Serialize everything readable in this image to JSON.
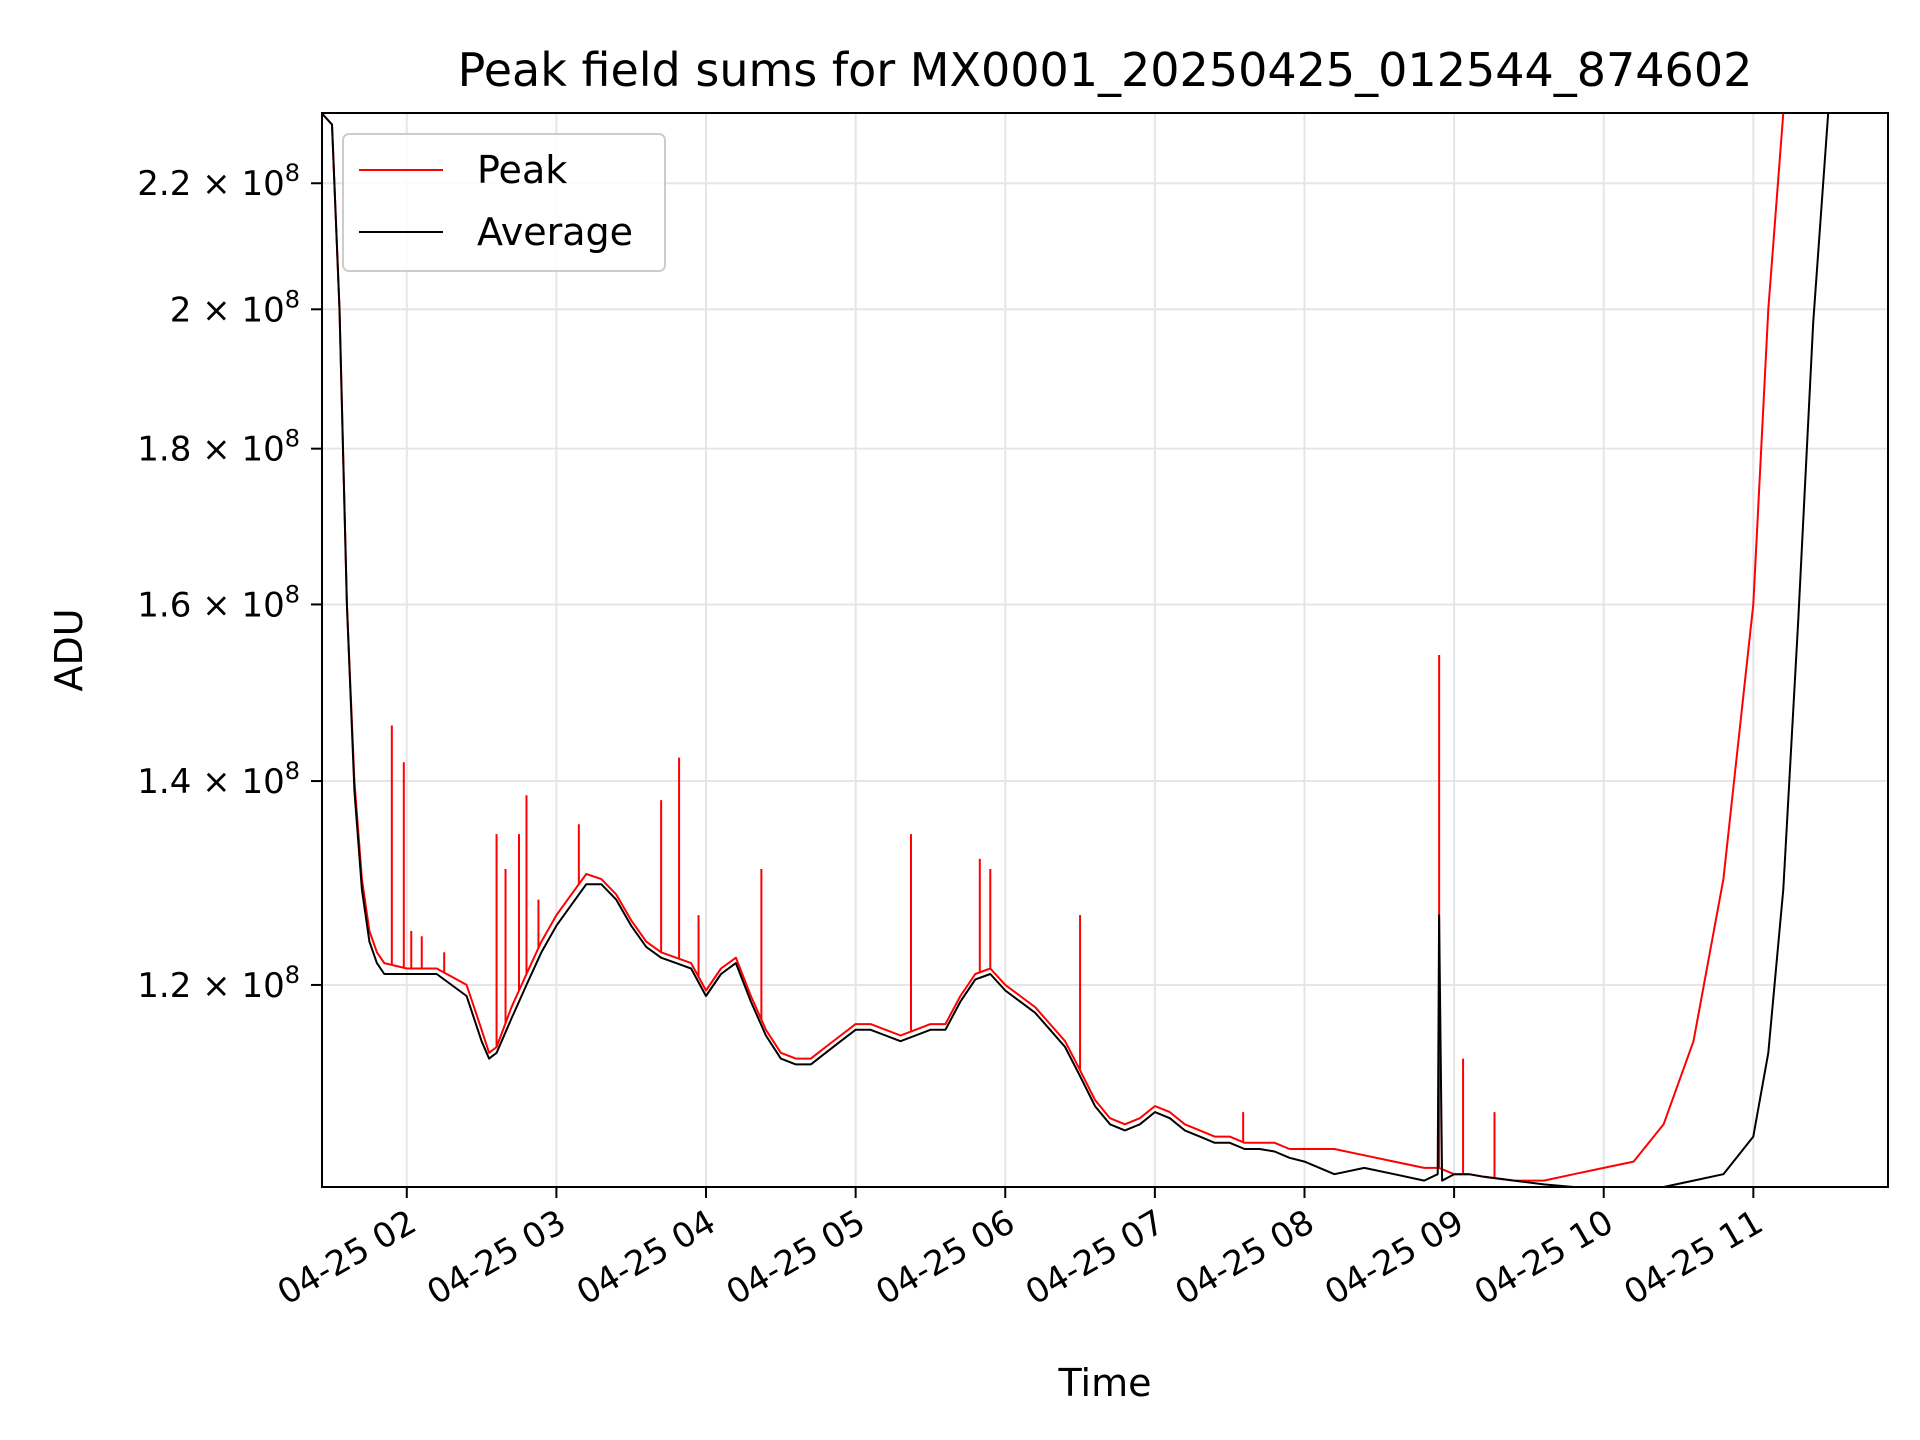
{
  "chart_data": {
    "type": "line",
    "title": "Peak field sums for MX0001_20250425_012544_874602",
    "xlabel": "Time",
    "ylabel": "ADU",
    "y_scale": "log",
    "grid": true,
    "legend_position": "top-left",
    "xlim": [
      "2025-04-25 01:26",
      "2025-04-25 11:54"
    ],
    "ylim": [
      103000000,
      232000000
    ],
    "x_ticks": [
      "04-25 02",
      "04-25 03",
      "04-25 04",
      "04-25 05",
      "04-25 06",
      "04-25 07",
      "04-25 08",
      "04-25 09",
      "04-25 10",
      "04-25 11"
    ],
    "x_tick_hours": [
      2,
      3,
      4,
      5,
      6,
      7,
      8,
      9,
      10,
      11
    ],
    "y_ticks": [
      {
        "value": 120000000,
        "mant": "1.2",
        "exp": "8"
      },
      {
        "value": 140000000,
        "mant": "1.4",
        "exp": "8"
      },
      {
        "value": 160000000,
        "mant": "1.6",
        "exp": "8"
      },
      {
        "value": 180000000,
        "mant": "1.8",
        "exp": "8"
      },
      {
        "value": 200000000,
        "mant": "2",
        "exp": "8"
      },
      {
        "value": 220000000,
        "mant": "2.2",
        "exp": "8"
      }
    ],
    "series": [
      {
        "name": "Peak",
        "color": "#ff0000",
        "x_hours": [
          1.43,
          1.5,
          1.55,
          1.6,
          1.65,
          1.7,
          1.75,
          1.8,
          1.85,
          2.0,
          2.2,
          2.4,
          2.5,
          2.55,
          2.6,
          2.7,
          2.8,
          2.9,
          3.0,
          3.1,
          3.2,
          3.3,
          3.4,
          3.5,
          3.6,
          3.7,
          3.8,
          3.9,
          4.0,
          4.1,
          4.2,
          4.3,
          4.4,
          4.5,
          4.6,
          4.7,
          4.8,
          4.9,
          5.0,
          5.1,
          5.2,
          5.3,
          5.4,
          5.5,
          5.6,
          5.7,
          5.8,
          5.9,
          6.0,
          6.1,
          6.2,
          6.3,
          6.4,
          6.5,
          6.6,
          6.7,
          6.8,
          6.9,
          7.0,
          7.1,
          7.2,
          7.3,
          7.4,
          7.5,
          7.6,
          7.7,
          7.8,
          7.9,
          8.0,
          8.2,
          8.4,
          8.6,
          8.8,
          8.9,
          9.0,
          9.1,
          9.2,
          9.4,
          9.6,
          9.8,
          10.0,
          10.2,
          10.4,
          10.6,
          10.8,
          11.0,
          11.1,
          11.2,
          11.3,
          11.4,
          11.5,
          11.6,
          11.65,
          11.7,
          11.75,
          11.8
        ],
        "values": [
          232000000,
          230000000,
          200000000,
          160000000,
          140000000,
          130000000,
          125000000,
          123000000,
          122000000,
          121500000,
          121500000,
          120000000,
          116000000,
          114000000,
          114500000,
          118000000,
          121000000,
          124000000,
          126500000,
          128500000,
          130500000,
          130000000,
          128500000,
          126000000,
          124000000,
          123000000,
          122500000,
          122000000,
          119500000,
          121500000,
          122500000,
          119000000,
          116000000,
          114000000,
          113500000,
          113500000,
          114500000,
          115500000,
          116500000,
          116500000,
          116000000,
          115500000,
          116000000,
          116500000,
          116500000,
          119000000,
          121000000,
          121500000,
          120000000,
          119000000,
          118000000,
          116500000,
          115000000,
          112500000,
          110000000,
          108500000,
          108000000,
          108500000,
          109500000,
          109000000,
          108000000,
          107500000,
          107000000,
          107000000,
          106500000,
          106500000,
          106500000,
          106000000,
          106000000,
          106000000,
          105500000,
          105000000,
          104500000,
          104500000,
          104000000,
          104000000,
          103800000,
          103500000,
          103500000,
          104000000,
          104500000,
          105000000,
          108000000,
          115000000,
          130000000,
          160000000,
          200000000,
          232000000,
          232000000,
          232000000,
          232000000,
          232000000,
          232000000,
          232000000,
          232000000,
          232000000
        ],
        "spikes": [
          {
            "x_hour": 1.9,
            "value": 146000000
          },
          {
            "x_hour": 1.98,
            "value": 142000000
          },
          {
            "x_hour": 2.03,
            "value": 125000000
          },
          {
            "x_hour": 2.1,
            "value": 124500000
          },
          {
            "x_hour": 2.25,
            "value": 123000000
          },
          {
            "x_hour": 2.6,
            "value": 134500000
          },
          {
            "x_hour": 2.66,
            "value": 131000000
          },
          {
            "x_hour": 2.75,
            "value": 134500000
          },
          {
            "x_hour": 2.8,
            "value": 138500000
          },
          {
            "x_hour": 2.88,
            "value": 128000000
          },
          {
            "x_hour": 3.15,
            "value": 135500000
          },
          {
            "x_hour": 3.7,
            "value": 138000000
          },
          {
            "x_hour": 3.82,
            "value": 142500000
          },
          {
            "x_hour": 3.95,
            "value": 126500000
          },
          {
            "x_hour": 4.37,
            "value": 131000000
          },
          {
            "x_hour": 5.37,
            "value": 134500000
          },
          {
            "x_hour": 5.83,
            "value": 132000000
          },
          {
            "x_hour": 5.9,
            "value": 131000000
          },
          {
            "x_hour": 6.5,
            "value": 126500000
          },
          {
            "x_hour": 7.59,
            "value": 109000000
          },
          {
            "x_hour": 8.9,
            "value": 154000000
          },
          {
            "x_hour": 9.06,
            "value": 113500000
          },
          {
            "x_hour": 9.27,
            "value": 109000000
          }
        ]
      },
      {
        "name": "Average",
        "color": "#000000",
        "x_hours": [
          1.43,
          1.5,
          1.55,
          1.6,
          1.65,
          1.7,
          1.75,
          1.8,
          1.85,
          2.0,
          2.2,
          2.4,
          2.5,
          2.55,
          2.6,
          2.7,
          2.8,
          2.9,
          3.0,
          3.1,
          3.2,
          3.3,
          3.4,
          3.5,
          3.6,
          3.7,
          3.8,
          3.9,
          4.0,
          4.1,
          4.2,
          4.3,
          4.4,
          4.5,
          4.6,
          4.7,
          4.8,
          4.9,
          5.0,
          5.1,
          5.2,
          5.3,
          5.4,
          5.5,
          5.6,
          5.7,
          5.8,
          5.9,
          6.0,
          6.1,
          6.2,
          6.3,
          6.4,
          6.5,
          6.6,
          6.7,
          6.8,
          6.9,
          7.0,
          7.1,
          7.2,
          7.3,
          7.4,
          7.5,
          7.6,
          7.7,
          7.8,
          7.9,
          8.0,
          8.2,
          8.4,
          8.6,
          8.8,
          8.89,
          8.9,
          8.92,
          9.0,
          9.1,
          9.2,
          9.4,
          9.6,
          9.8,
          10.0,
          10.2,
          10.4,
          10.6,
          10.8,
          11.0,
          11.1,
          11.2,
          11.3,
          11.4,
          11.5,
          11.6,
          11.65,
          11.7,
          11.75,
          11.8
        ],
        "values": [
          232000000,
          230000000,
          200000000,
          160000000,
          139000000,
          129000000,
          124000000,
          122000000,
          121000000,
          121000000,
          121000000,
          119000000,
          115000000,
          113500000,
          114000000,
          117000000,
          120000000,
          123000000,
          125500000,
          127500000,
          129500000,
          129500000,
          128000000,
          125500000,
          123500000,
          122500000,
          122000000,
          121500000,
          119000000,
          121000000,
          122000000,
          118500000,
          115500000,
          113500000,
          113000000,
          113000000,
          114000000,
          115000000,
          116000000,
          116000000,
          115500000,
          115000000,
          115500000,
          116000000,
          116000000,
          118500000,
          120500000,
          121000000,
          119500000,
          118500000,
          117500000,
          116000000,
          114500000,
          112000000,
          109500000,
          108000000,
          107500000,
          108000000,
          109000000,
          108500000,
          107500000,
          107000000,
          106500000,
          106500000,
          106000000,
          106000000,
          105800000,
          105300000,
          105000000,
          104000000,
          104500000,
          104000000,
          103500000,
          104000000,
          126500000,
          103500000,
          104000000,
          104000000,
          103800000,
          103500000,
          103200000,
          103000000,
          103000000,
          103000000,
          103000000,
          103500000,
          104000000,
          107000000,
          114000000,
          129000000,
          158000000,
          198000000,
          232000000,
          232000000,
          232000000,
          232000000,
          232000000,
          232000000
        ]
      }
    ]
  }
}
